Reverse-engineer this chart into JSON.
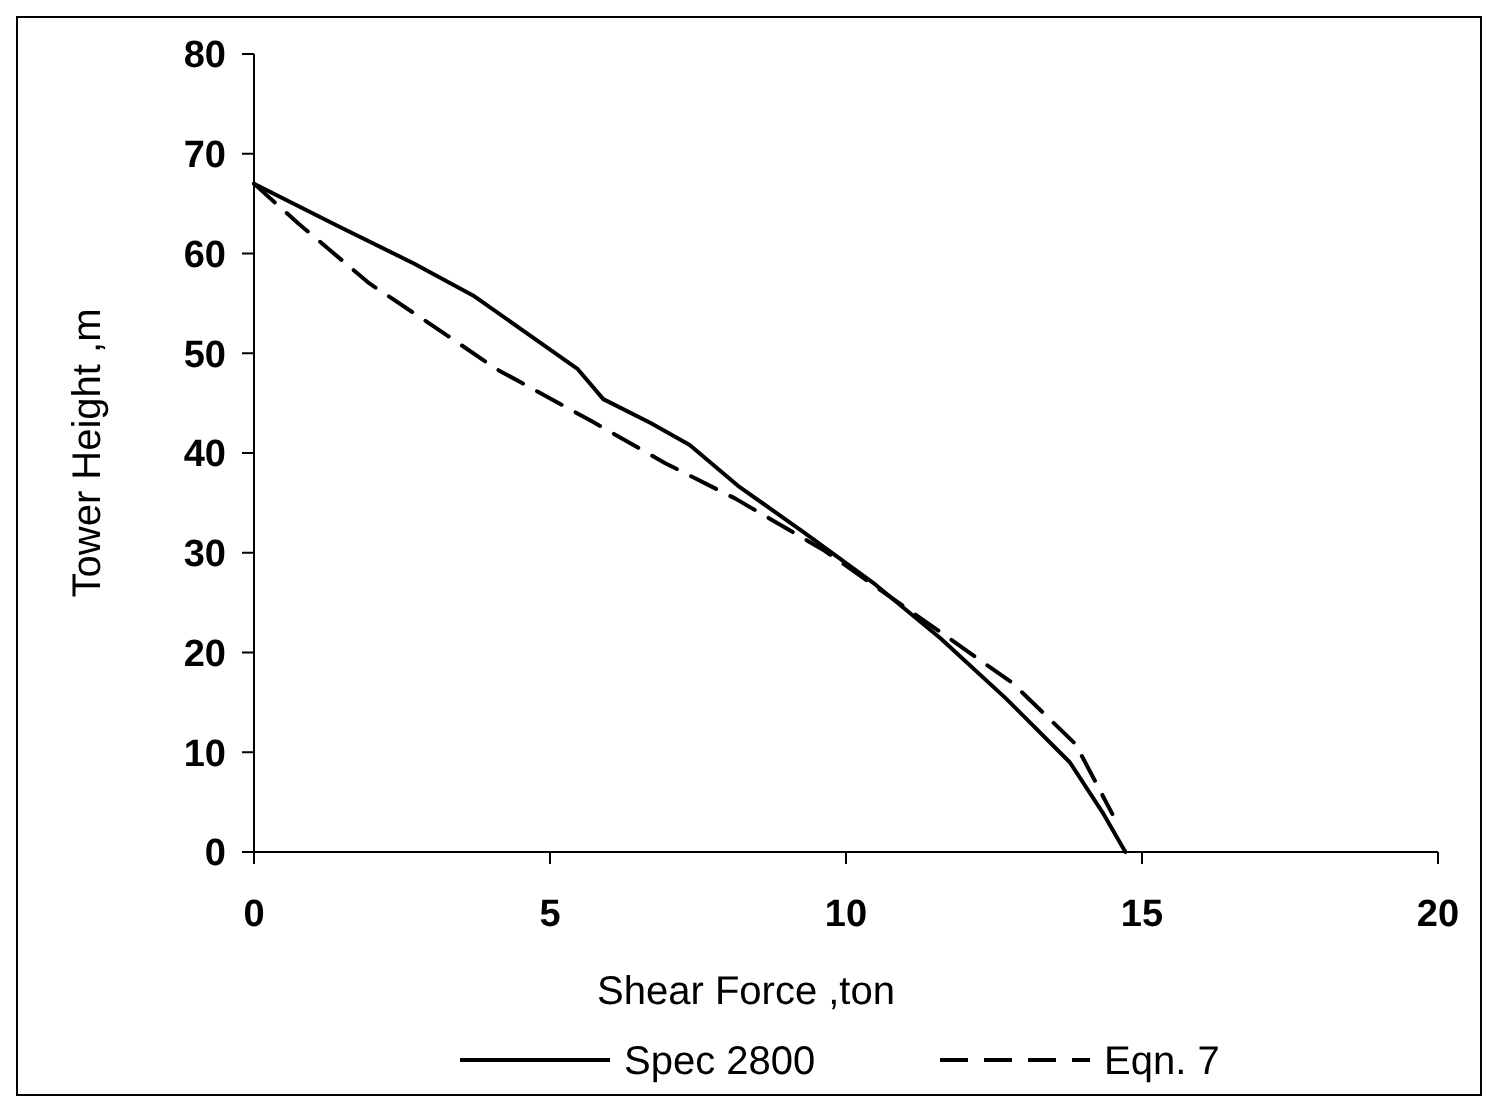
{
  "chart_data": {
    "type": "line",
    "xlabel": "Shear Force ,ton",
    "ylabel": "Tower Height ,m",
    "xlim": [
      0,
      20
    ],
    "ylim": [
      0,
      80
    ],
    "xticks": [
      0,
      5,
      10,
      15,
      20
    ],
    "yticks": [
      0,
      10,
      20,
      30,
      40,
      50,
      60,
      70,
      80
    ],
    "grid": false,
    "legend": "bottom",
    "marker": "none",
    "series": [
      {
        "name": "Spec 2800",
        "color": "#000000",
        "line_style": "solid",
        "x": [
          0,
          1.4,
          2.7,
          3.7,
          4.66,
          5.47,
          5.9,
          6.7,
          7.36,
          8.2,
          9.3,
          10.5,
          11.6,
          12.7,
          13.78,
          14.33,
          14.72
        ],
        "values": [
          67,
          62.8,
          59,
          55.8,
          51.8,
          48.4,
          45.4,
          43,
          40.8,
          36.6,
          32,
          26.8,
          21.4,
          15.4,
          9,
          4,
          0
        ]
      },
      {
        "name": "Eqn. 7",
        "color": "#000000",
        "line_style": "dashed",
        "x": [
          0,
          0.75,
          1.95,
          3.26,
          4.1,
          5.7,
          6.94,
          8.14,
          9.64,
          11.27,
          12.8,
          13.88,
          14.5
        ],
        "values": [
          67,
          63,
          57,
          51.8,
          48.4,
          43.2,
          39,
          35.4,
          30.2,
          23.4,
          17,
          10.8,
          3.8
        ]
      }
    ]
  }
}
